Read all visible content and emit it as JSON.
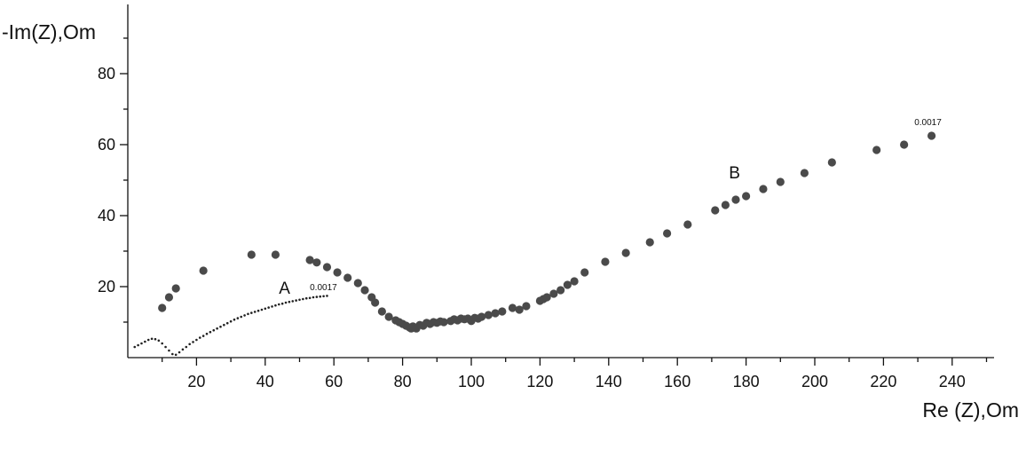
{
  "chart_data": {
    "type": "scatter",
    "xlabel": "Re (Z),Om",
    "ylabel": "-Im(Z),Om",
    "xlim": [
      0,
      250
    ],
    "ylim": [
      0,
      100
    ],
    "x_ticks": [
      20,
      40,
      60,
      80,
      100,
      120,
      140,
      160,
      180,
      200,
      220,
      240
    ],
    "y_ticks": [
      20,
      40,
      60,
      80
    ],
    "grid": false,
    "colors": {
      "A": "#222222",
      "B": "#4a4a4a",
      "axis": "#111111"
    },
    "series": [
      {
        "name": "A",
        "marker": "small-dot",
        "x": [
          2,
          3,
          4,
          5,
          6,
          7,
          8,
          9,
          10,
          11,
          12,
          13,
          14,
          15,
          16,
          17,
          18,
          19,
          20,
          21,
          22,
          23,
          24,
          25,
          26,
          27,
          28,
          29,
          30,
          31,
          32,
          33,
          34,
          35,
          36,
          37,
          38,
          39,
          40,
          41,
          42,
          43,
          44,
          45,
          46,
          47,
          48,
          49,
          50,
          51,
          52,
          53,
          54,
          55,
          56,
          57,
          58
        ],
        "y": [
          3,
          3.5,
          4,
          4.5,
          5,
          5.3,
          5.2,
          4.8,
          4,
          3,
          2,
          1,
          0.8,
          1.5,
          2.3,
          3,
          3.8,
          4.4,
          5,
          5.6,
          6.1,
          6.7,
          7.2,
          7.7,
          8.2,
          8.7,
          9.2,
          9.7,
          10.2,
          10.7,
          11.1,
          11.5,
          11.9,
          12.3,
          12.6,
          12.9,
          13.2,
          13.5,
          13.8,
          14.1,
          14.4,
          14.7,
          15,
          15.2,
          15.5,
          15.7,
          15.9,
          16.1,
          16.3,
          16.5,
          16.7,
          16.8,
          17,
          17.1,
          17.2,
          17.3,
          17.4
        ]
      },
      {
        "name": "B",
        "marker": "large-dot",
        "x": [
          10,
          12,
          14,
          22,
          36,
          43,
          53,
          55,
          58,
          61,
          64,
          67,
          69,
          71,
          72,
          74,
          76,
          78,
          79,
          80,
          81,
          82,
          82.5,
          83,
          84,
          85,
          86,
          87,
          88,
          89,
          90,
          91,
          92,
          94,
          95,
          96,
          97,
          98,
          99,
          100,
          101,
          102,
          103,
          105,
          107,
          109,
          112,
          114,
          116,
          120,
          121,
          122,
          124,
          126,
          128,
          130,
          133,
          139,
          145,
          152,
          157,
          163,
          171,
          174,
          177,
          180,
          185,
          190,
          197,
          205,
          218,
          226,
          234
        ],
        "y": [
          14,
          17,
          19.5,
          24.5,
          29,
          29,
          27.5,
          26.8,
          25.5,
          24,
          22.5,
          21,
          19,
          17,
          15.5,
          13,
          11.5,
          10.5,
          10,
          9.5,
          9,
          8.5,
          8.2,
          8.8,
          8.2,
          9.2,
          9,
          9.8,
          9.5,
          10,
          9.8,
          10.2,
          10,
          10.3,
          10.8,
          10.5,
          11,
          10.8,
          11,
          10.3,
          11.2,
          11,
          11.5,
          12,
          12.5,
          13,
          14,
          13.5,
          14.5,
          16,
          16.5,
          17,
          18,
          19,
          20.5,
          21.5,
          24,
          27,
          29.5,
          32.5,
          35,
          37.5,
          41.5,
          43,
          44.5,
          45.5,
          47.5,
          49.5,
          52,
          55,
          58.5,
          60,
          62.5
        ]
      }
    ],
    "annotations": [
      {
        "text": "0.0017",
        "x": 53,
        "y": 19
      },
      {
        "text": "0.0017",
        "x": 229,
        "y": 65.5
      },
      {
        "text": "A",
        "x": 44,
        "y": 18
      },
      {
        "text": "B",
        "x": 175,
        "y": 50.5
      }
    ]
  }
}
